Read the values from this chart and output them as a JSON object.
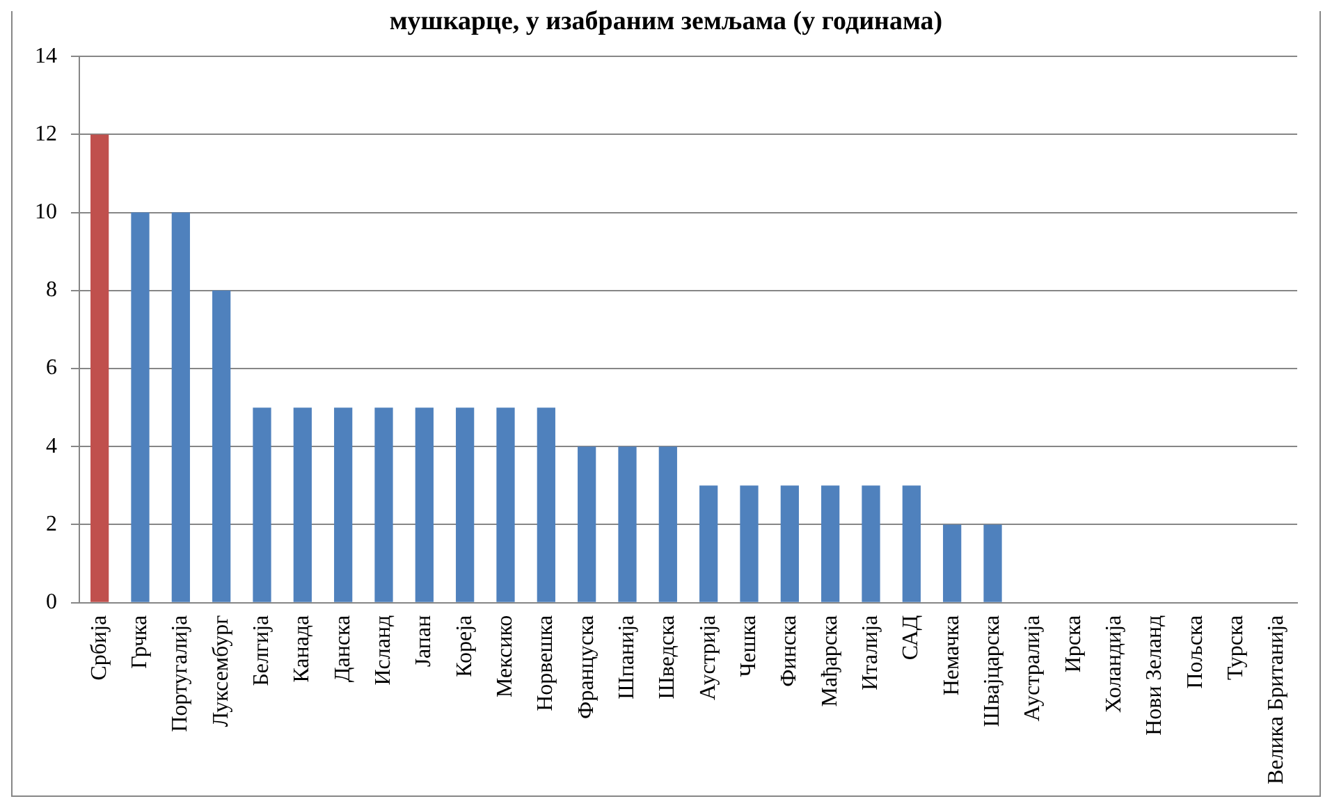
{
  "chart_data": {
    "type": "bar",
    "title": "мушкарце, у изабраним земљама (у годинама)",
    "categories": [
      "Србија",
      "Грчка",
      "Португалија",
      "Луксембург",
      "Белгија",
      "Канада",
      "Данска",
      "Исланд",
      "Јапан",
      "Кореја",
      "Мексико",
      "Норвешка",
      "Француска",
      "Шпанија",
      "Шведска",
      "Аустрија",
      "Чешка",
      "Финска",
      "Мађарска",
      "Италија",
      "САД",
      "Немачка",
      "Швајцарска",
      "Аустралија",
      "Ирска",
      "Холандија",
      "Нови Зеланд",
      "Пољска",
      "Турска",
      "Велика Британија"
    ],
    "values": [
      12,
      10,
      10,
      8,
      5,
      5,
      5,
      5,
      5,
      5,
      5,
      5,
      4,
      4,
      4,
      3,
      3,
      3,
      3,
      3,
      3,
      2,
      2,
      0,
      0,
      0,
      0,
      0,
      0,
      0
    ],
    "colors": [
      "#c0504d",
      "#4f81bd",
      "#4f81bd",
      "#4f81bd",
      "#4f81bd",
      "#4f81bd",
      "#4f81bd",
      "#4f81bd",
      "#4f81bd",
      "#4f81bd",
      "#4f81bd",
      "#4f81bd",
      "#4f81bd",
      "#4f81bd",
      "#4f81bd",
      "#4f81bd",
      "#4f81bd",
      "#4f81bd",
      "#4f81bd",
      "#4f81bd",
      "#4f81bd",
      "#4f81bd",
      "#4f81bd",
      "#4f81bd",
      "#4f81bd",
      "#4f81bd",
      "#4f81bd",
      "#4f81bd",
      "#4f81bd",
      "#4f81bd"
    ],
    "ylim": [
      0,
      14
    ],
    "yticks": [
      0,
      2,
      4,
      6,
      8,
      10,
      12,
      14
    ],
    "grid": "y",
    "legend": false
  }
}
